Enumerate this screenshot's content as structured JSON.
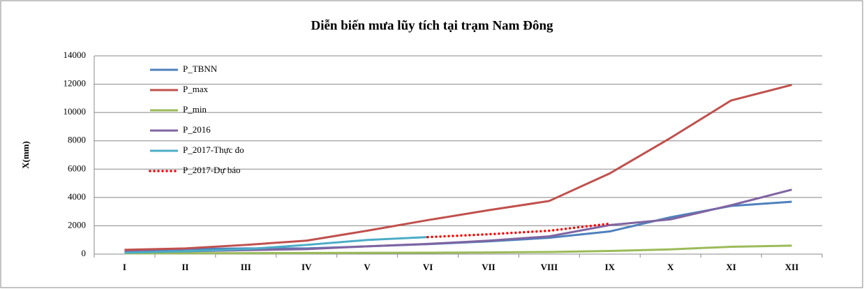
{
  "chart_data": {
    "type": "line",
    "title": "Diễn biến mưa lũy tích tại trạm Nam Đông",
    "y_label": "X(mm)",
    "categories": [
      "I",
      "II",
      "III",
      "IV",
      "V",
      "VI",
      "VII",
      "VIII",
      "IX",
      "X",
      "XI",
      "XII"
    ],
    "series": [
      {
        "name": "P_TBNN",
        "color": "#4F81BD",
        "style": "solid",
        "values": [
          250,
          350,
          400,
          400,
          550,
          700,
          900,
          1150,
          1600,
          2600,
          3400,
          3700
        ]
      },
      {
        "name": "P_max",
        "color": "#C0504D",
        "style": "solid",
        "values": [
          300,
          400,
          650,
          950,
          1650,
          2400,
          3100,
          3750,
          5700,
          8200,
          10850,
          11950
        ]
      },
      {
        "name": "P_min",
        "color": "#9BBB59",
        "style": "solid",
        "values": [
          50,
          60,
          70,
          80,
          90,
          100,
          120,
          150,
          220,
          330,
          520,
          600
        ]
      },
      {
        "name": "P_2016",
        "color": "#8064A2",
        "style": "solid",
        "values": [
          150,
          200,
          280,
          350,
          550,
          720,
          950,
          1250,
          2050,
          2450,
          3450,
          4550
        ]
      },
      {
        "name": "P_2017-Thực đo",
        "color": "#4BACC6",
        "style": "solid",
        "values": [
          100,
          200,
          350,
          650,
          1000,
          1200,
          null,
          null,
          null,
          null,
          null,
          null
        ]
      },
      {
        "name": "P_2017-Dự báo",
        "color": "#FF0000",
        "style": "dotted",
        "values": [
          null,
          null,
          null,
          null,
          null,
          1200,
          1400,
          1650,
          2150,
          null,
          null,
          null
        ]
      }
    ],
    "ylim": [
      0,
      14000
    ],
    "yticks": [
      0,
      2000,
      4000,
      6000,
      8000,
      10000,
      12000,
      14000
    ],
    "grid": true,
    "legend": "top-left"
  }
}
